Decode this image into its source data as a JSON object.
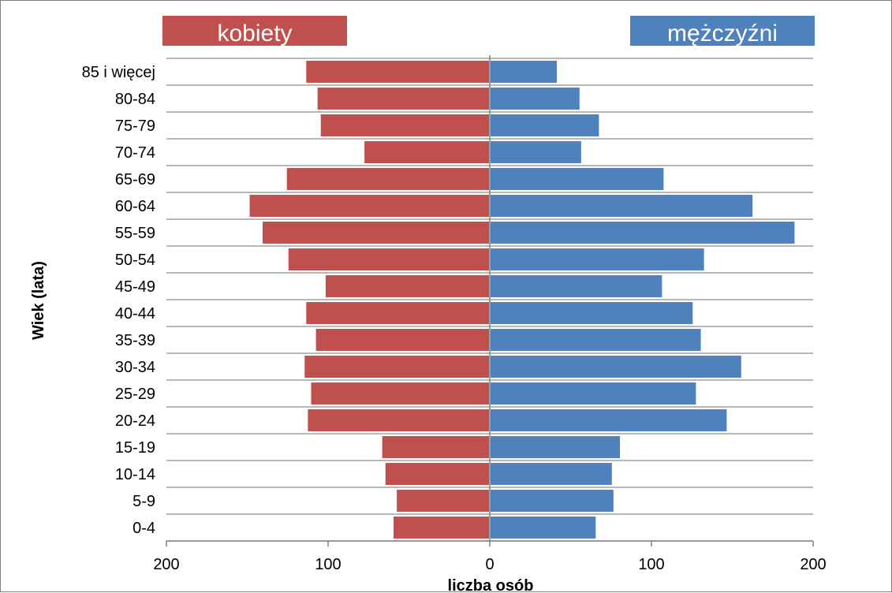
{
  "chart_data": {
    "type": "bar",
    "orientation": "horizontal",
    "subtype": "population-pyramid",
    "categories": [
      "0-4",
      "5-9",
      "10-14",
      "15-19",
      "20-24",
      "25-29",
      "30-34",
      "35-39",
      "40-44",
      "45-49",
      "50-54",
      "55-59",
      "60-64",
      "65-69",
      "70-74",
      "75-79",
      "80-84",
      "85 i więcej"
    ],
    "series": [
      {
        "name": "kobiety",
        "color": "#c0504d",
        "side": "left",
        "values": [
          60,
          58,
          65,
          67,
          113,
          111,
          115,
          108,
          114,
          102,
          125,
          141,
          149,
          126,
          78,
          105,
          107,
          114
        ]
      },
      {
        "name": "mężczyźni",
        "color": "#4f81bd",
        "side": "right",
        "values": [
          66,
          77,
          76,
          81,
          147,
          128,
          156,
          131,
          126,
          107,
          133,
          189,
          163,
          108,
          57,
          68,
          56,
          42
        ]
      }
    ],
    "xlabel": "liczba osób",
    "ylabel": "Wiek (lata)",
    "xlim": [
      -200,
      200
    ],
    "xticks": [
      -200,
      -100,
      0,
      100,
      200
    ],
    "xtick_labels": [
      "200",
      "100",
      "0",
      "100",
      "200"
    ],
    "grid": true,
    "legend": "top"
  }
}
